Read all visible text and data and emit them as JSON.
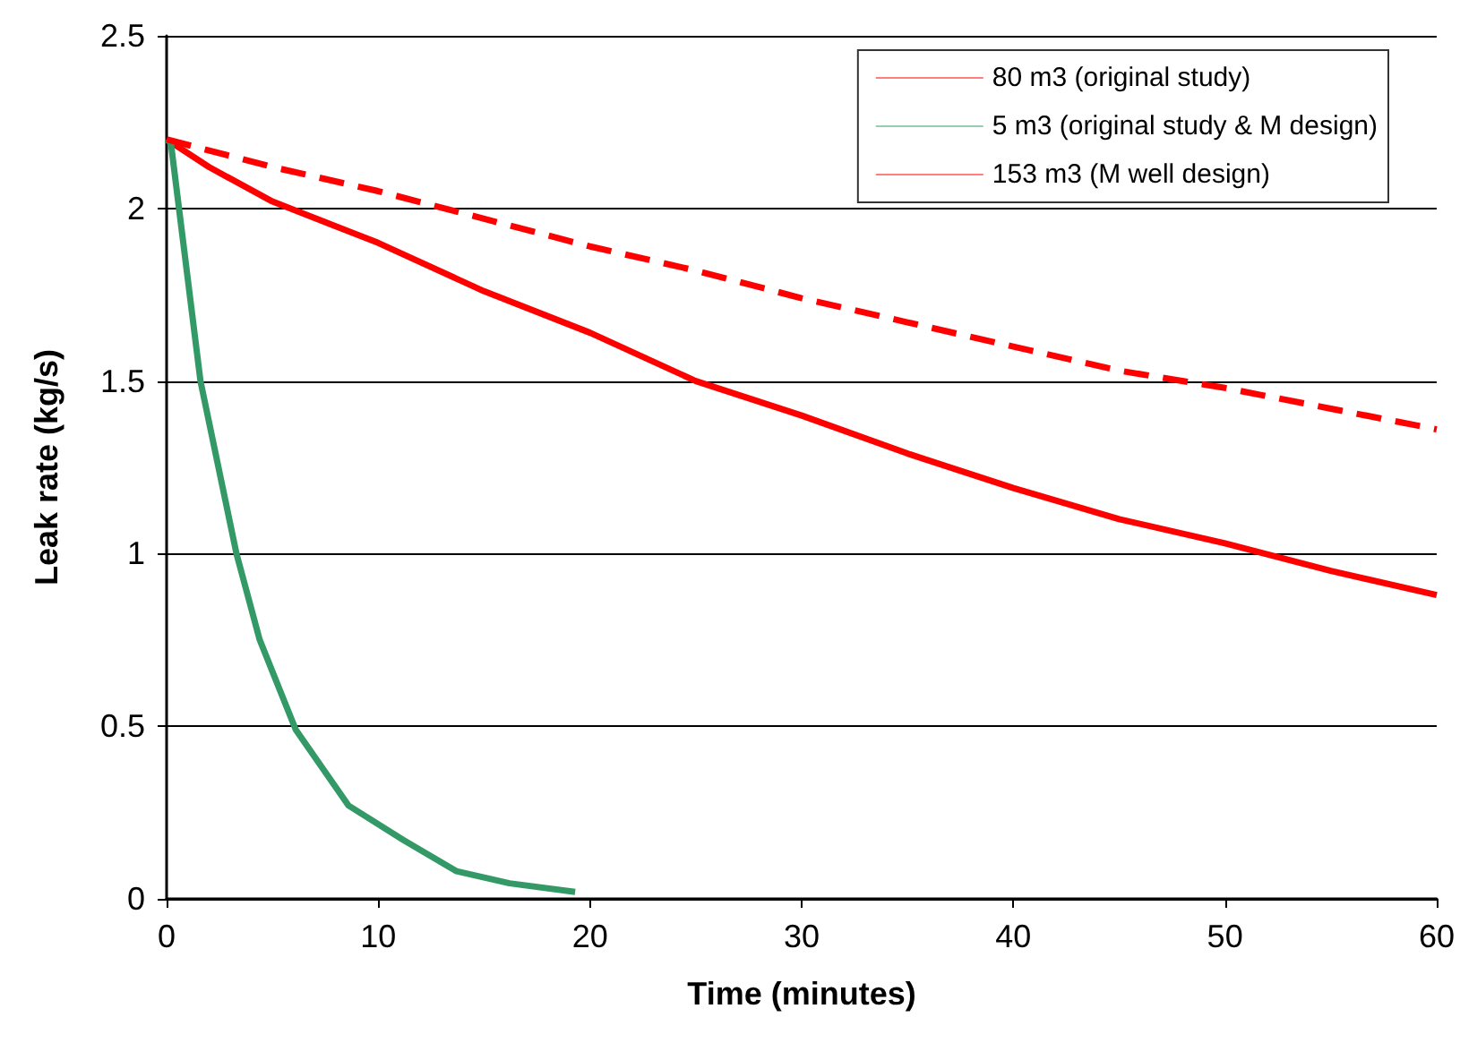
{
  "chart_data": {
    "type": "line",
    "xlabel": "Time (minutes)",
    "ylabel": "Leak rate (kg/s)",
    "xlim": [
      0,
      60
    ],
    "xticks": [
      0,
      10,
      20,
      30,
      40,
      50,
      60
    ],
    "ylim": [
      0,
      2.5
    ],
    "yticks": [
      0,
      0.5,
      1,
      1.5,
      2,
      2.5
    ],
    "grid": "y",
    "legend": "top right",
    "marker": "none",
    "series": [
      {
        "name": "80 m3 (original study)",
        "color": "#ff0000",
        "line_style": "solid",
        "x": [
          0,
          2,
          5,
          10,
          15,
          20,
          25,
          30,
          35,
          40,
          45,
          50,
          55,
          60
        ],
        "values": [
          2.2,
          2.12,
          2.02,
          1.9,
          1.76,
          1.64,
          1.5,
          1.4,
          1.29,
          1.19,
          1.1,
          1.03,
          0.95,
          0.88
        ]
      },
      {
        "name": "5 m3 (original study & M design)",
        "color": "#339966",
        "line_style": "solid",
        "x": [
          0,
          0.2,
          1.6,
          3.3,
          4.4,
          6.1,
          8.6,
          11.2,
          13.7,
          16.2,
          19.3
        ],
        "values": [
          2.2,
          2.19,
          1.5,
          1.0,
          0.75,
          0.49,
          0.27,
          0.17,
          0.08,
          0.045,
          0.02
        ]
      },
      {
        "name": "153 m3 (M well design)",
        "color": "#ff0000",
        "line_style": "dashed",
        "x": [
          0,
          5,
          10,
          15,
          20,
          25,
          30,
          35,
          40,
          45,
          50,
          55,
          60
        ],
        "values": [
          2.2,
          2.12,
          2.05,
          1.97,
          1.89,
          1.82,
          1.74,
          1.67,
          1.6,
          1.53,
          1.48,
          1.42,
          1.36
        ]
      }
    ]
  }
}
